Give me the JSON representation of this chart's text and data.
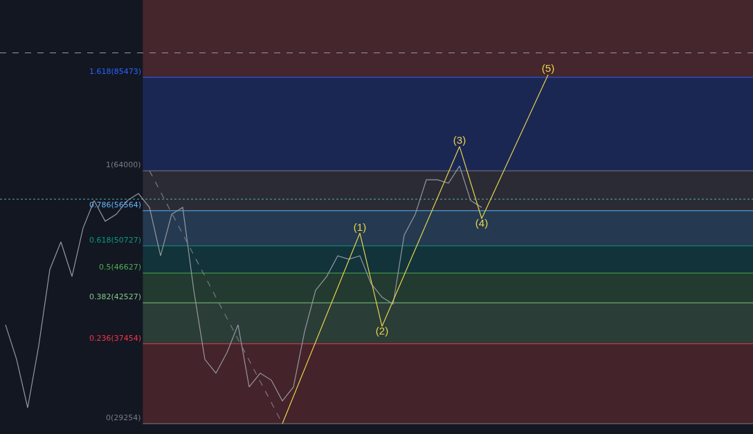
{
  "chart_data": {
    "type": "line",
    "categories": [
      null,
      null,
      null,
      null,
      null,
      null,
      null,
      null,
      null,
      null,
      null,
      null,
      null,
      null,
      null,
      null,
      null,
      null,
      null,
      null,
      null,
      null,
      null,
      null,
      null,
      null,
      null,
      null,
      null,
      null,
      null,
      null,
      null,
      null,
      null,
      null,
      null,
      null,
      null,
      null,
      null,
      null,
      null,
      null,
      null,
      null,
      null,
      null,
      null,
      null,
      null,
      null,
      null,
      null,
      null,
      null,
      null,
      null,
      null,
      null,
      null,
      null,
      null,
      null,
      null,
      null,
      null,
      null
    ],
    "log": true,
    "ylim": [
      28330,
      108600
    ],
    "tick_labels": false,
    "series": [
      {
        "color": "#9598a1",
        "values": [
          39720,
          35690,
          30730,
          37250,
          47140,
          51350,
          46140,
          53590,
          58370,
          54750,
          55930,
          58370,
          59640,
          57140,
          49190,
          55930,
          57140,
          44200,
          35690,
          34200,
          36460,
          39720,
          32770,
          34200,
          33470,
          31390,
          32770,
          38880,
          44200,
          46140,
          49190,
          48670,
          49190,
          45160,
          43270,
          42350,
          52450,
          55930,
          62250,
          62250,
          61580,
          64970,
          58370,
          57140,
          null,
          null,
          null,
          null,
          null,
          null,
          null,
          null,
          null,
          null,
          null,
          null,
          null,
          null,
          null,
          null,
          null,
          null,
          null,
          null,
          null,
          null,
          null,
          null
        ]
      },
      {
        "color": "#787b86",
        "line_style": "dashed",
        "values": [
          null,
          null,
          null,
          null,
          null,
          null,
          null,
          null,
          null,
          null,
          null,
          null,
          null,
          64000,
          null,
          null,
          null,
          null,
          null,
          null,
          null,
          null,
          null,
          null,
          null,
          29254,
          null,
          null,
          null,
          null,
          null,
          null,
          null,
          null,
          null,
          null,
          null,
          null,
          null,
          null,
          null,
          null,
          null,
          null,
          null,
          null,
          null,
          null,
          null,
          null,
          null,
          null,
          null,
          null,
          null,
          null,
          null,
          null,
          null,
          null,
          null,
          null,
          null,
          null,
          null,
          null,
          null,
          null
        ]
      },
      {
        "color": "#e8d44d",
        "values": [
          null,
          null,
          null,
          null,
          null,
          null,
          null,
          null,
          null,
          null,
          null,
          null,
          null,
          null,
          null,
          null,
          null,
          null,
          null,
          null,
          null,
          null,
          null,
          null,
          null,
          29254,
          null,
          null,
          null,
          null,
          null,
          null,
          52770,
          null,
          39530,
          null,
          null,
          null,
          null,
          null,
          null,
          68980,
          null,
          55200,
          null,
          null,
          null,
          null,
          null,
          86170,
          null,
          null,
          null,
          null,
          null,
          null,
          null,
          null,
          null,
          null,
          null,
          null,
          null,
          null,
          null,
          null,
          null,
          null
        ]
      }
    ],
    "annotations": [
      "(1)",
      "(2)",
      "(3)",
      "(4)",
      "(5)"
    ],
    "bands": [
      {
        "axis": "y",
        "from": 85473,
        "to": 108600,
        "color": "#45262d"
      },
      {
        "axis": "y",
        "from": 64000,
        "to": 85473,
        "color": "#1b2753"
      },
      {
        "axis": "y",
        "from": 56564,
        "to": 64000,
        "color": "#2a2b35"
      },
      {
        "axis": "y",
        "from": 50727,
        "to": 56564,
        "color": "#253a50"
      },
      {
        "axis": "y",
        "from": 46627,
        "to": 50727,
        "color": "#12333a"
      },
      {
        "axis": "y",
        "from": 42527,
        "to": 46627,
        "color": "#223a2f"
      },
      {
        "axis": "y",
        "from": 37454,
        "to": 42527,
        "color": "#2b3d37"
      },
      {
        "axis": "y",
        "from": 29254,
        "to": 37454,
        "color": "#45232a"
      }
    ],
    "ref_lines": [
      {
        "axis": "y",
        "value": 85473,
        "label": "1.618(85473)",
        "color": "#2962ff"
      },
      {
        "axis": "y",
        "value": 64000,
        "label": "1(64000)",
        "color": "#787b86"
      },
      {
        "axis": "y",
        "value": 56564,
        "label": "0.786(56564)",
        "color": "#64b5f6"
      },
      {
        "axis": "y",
        "value": 50727,
        "label": "0.618(50727)",
        "color": "#089981"
      },
      {
        "axis": "y",
        "value": 46627,
        "label": "0.5(46627)",
        "color": "#4caf50"
      },
      {
        "axis": "y",
        "value": 42527,
        "label": "0.382(42527)",
        "color": "#81c784"
      },
      {
        "axis": "y",
        "value": 37454,
        "label": "0.236(37454)",
        "color": "#f23645"
      },
      {
        "axis": "y",
        "value": 29254,
        "label": "0(29254)",
        "color": "#787b86"
      },
      {
        "axis": "y",
        "value": 58620,
        "color": "#4db6ac",
        "line_style": "dotted"
      },
      {
        "axis": "y",
        "value": 92200,
        "color": "#9598a1",
        "line_style": "dashed"
      }
    ]
  }
}
